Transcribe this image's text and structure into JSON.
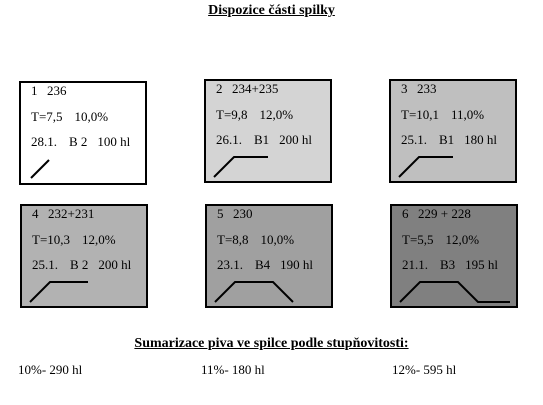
{
  "title": "Dispozice části spilky",
  "tiles": [
    {
      "number": "1",
      "batch": "236",
      "temp": "T=7,5",
      "degree": "10,0%",
      "date": "28.1.",
      "unit": "B 2",
      "volume": "100 hl",
      "fill": "#ffffff",
      "profile": "rising"
    },
    {
      "number": "2",
      "batch": "234+235",
      "temp": "T=9,8",
      "degree": "12,0%",
      "date": "26.1.",
      "unit": "B1",
      "volume": "200 hl",
      "fill": "#d4d4d4",
      "profile": "rise-flat"
    },
    {
      "number": "3",
      "batch": "233",
      "temp": "T=10,1",
      "degree": "11,0%",
      "date": "25.1.",
      "unit": "B1",
      "volume": "180 hl",
      "fill": "#bfbfbf",
      "profile": "rise-flat"
    },
    {
      "number": "4",
      "batch": "232+231",
      "temp": "T=10,3",
      "degree": "12,0%",
      "date": "25.1.",
      "unit": "B 2",
      "volume": "200 hl",
      "fill": "#b2b2b2",
      "profile": "rise-flat"
    },
    {
      "number": "5",
      "batch": "230",
      "temp": "T=8,8",
      "degree": "10,0%",
      "date": "23.1.",
      "unit": "B4",
      "volume": "190 hl",
      "fill": "#a0a0a0",
      "profile": "rise-flat-fall"
    },
    {
      "number": "6",
      "batch": "229 + 228",
      "temp": "T=5,5",
      "degree": "12,0%",
      "date": "21.1.",
      "unit": "B3",
      "volume": "195 hl",
      "fill": "#808080",
      "profile": "rise-flat-fall-flat"
    }
  ],
  "summary": {
    "title": "Sumarizace piva ve spilce podle stupňovitosti:",
    "items": [
      {
        "label": "10%- 290 hl"
      },
      {
        "label": "11%- 180 hl"
      },
      {
        "label": "12%- 595 hl"
      }
    ]
  }
}
